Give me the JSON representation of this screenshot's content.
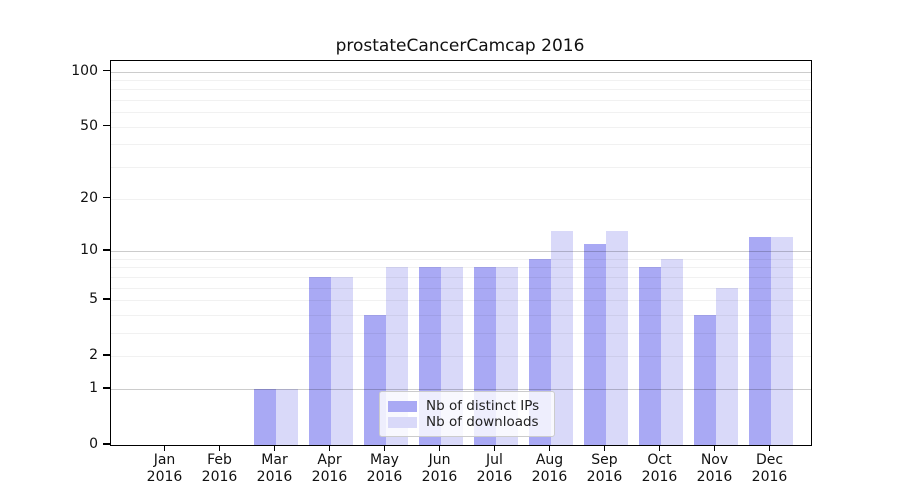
{
  "chart_data": {
    "type": "bar",
    "title": "prostateCancerCamcap 2016",
    "year_label": "2016",
    "categories": [
      "Jan",
      "Feb",
      "Mar",
      "Apr",
      "May",
      "Jun",
      "Jul",
      "Aug",
      "Sep",
      "Oct",
      "Nov",
      "Dec"
    ],
    "series": [
      {
        "name": "Nb of distinct IPs",
        "color": "#a9a9f4",
        "values": [
          0,
          0,
          1,
          7,
          4,
          8,
          8,
          9,
          11,
          8,
          4,
          12
        ]
      },
      {
        "name": "Nb of downloads",
        "color": "#d9d9f9",
        "values": [
          0,
          0,
          1,
          7,
          8,
          8,
          8,
          13,
          13,
          9,
          6,
          12
        ]
      }
    ],
    "y_axis": {
      "scale": "log1p",
      "ticks": [
        0,
        1,
        2,
        5,
        10,
        20,
        50,
        100
      ],
      "minor_ticks": [
        2,
        3,
        4,
        5,
        6,
        7,
        8,
        9,
        20,
        30,
        40,
        50,
        60,
        70,
        80,
        90
      ],
      "major_gridlines": [
        1,
        10,
        100
      ],
      "ylim": [
        0,
        114
      ]
    },
    "legend_position": "lower center inside",
    "grid": "on",
    "colors": {
      "frame": "#000000",
      "background": "#ffffff",
      "text": "#111111"
    }
  }
}
